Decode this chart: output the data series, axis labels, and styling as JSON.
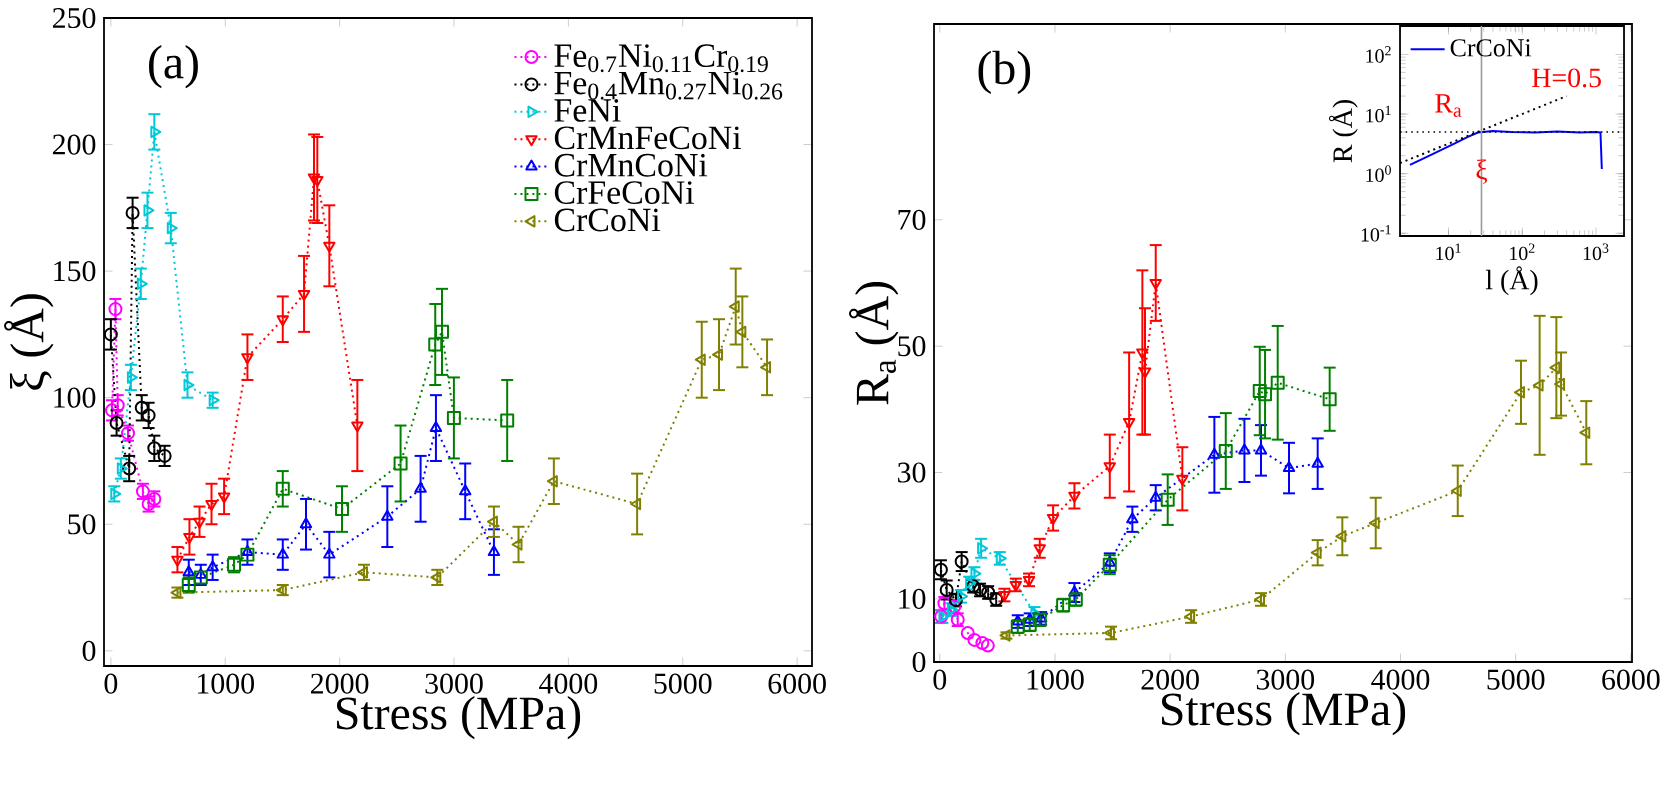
{
  "chart_data": [
    {
      "type": "line",
      "xlabel": "Stress (MPa)",
      "ylabel": "ξ (Å)",
      "annotations": [
        "(a)"
      ],
      "xlim": [
        -60,
        6130
      ],
      "ylim": [
        -6,
        250
      ],
      "xticks": [
        0,
        1000,
        2000,
        3000,
        4000,
        5000,
        6000
      ],
      "yticks": [
        0,
        50,
        100,
        150,
        200,
        250
      ],
      "legend": "top right",
      "line_style": "dotted",
      "grid": false,
      "series": [
        {
          "name": "Fe$_{0.7}$Ni$_{0.11}$Cr$_{0.19}$",
          "color": "#ff00ff",
          "marker": "circle",
          "x": [
            10,
            40,
            60,
            150,
            280,
            330,
            380
          ],
          "values": [
            95,
            135,
            97,
            86,
            63,
            58,
            60
          ],
          "errors": [
            4,
            4,
            4,
            3,
            3,
            3,
            3
          ]
        },
        {
          "name": "Fe$_{0.4}$Mn$_{0.27}$Ni$_{0.26}$",
          "color": "#000000",
          "marker": "circle",
          "x": [
            0,
            50,
            160,
            190,
            270,
            330,
            380,
            470
          ],
          "values": [
            125,
            90,
            72,
            173,
            96,
            93,
            80,
            77
          ],
          "errors": [
            6,
            5,
            5,
            6,
            5,
            5,
            5,
            4
          ]
        },
        {
          "name": "FeNi",
          "color": "#00c8d8",
          "marker": "triangle",
          "x": [
            30,
            87,
            175,
            262,
            320,
            380,
            524,
            670,
            890
          ],
          "values": [
            62,
            72,
            108,
            145,
            174,
            205,
            167,
            105,
            99
          ],
          "errors": [
            3,
            4,
            5,
            6,
            7,
            7,
            6,
            5,
            3
          ]
        },
        {
          "name": "CrMnFeCoNi",
          "color": "#ff0000",
          "marker": "triangle",
          "x": [
            582,
            687,
            775,
            880,
            990,
            1194,
            1503,
            1689,
            1776,
            1805,
            1910,
            2155
          ],
          "values": [
            36,
            45,
            51,
            58,
            61,
            116,
            131,
            141,
            187,
            186,
            160,
            89
          ],
          "errors": [
            5,
            7,
            6,
            8,
            7,
            9,
            9,
            15,
            17,
            17,
            16,
            18
          ]
        },
        {
          "name": "CrMnCoNi",
          "color": "#0000ff",
          "marker": "triangle",
          "x": [
            681,
            786,
            890,
            1194,
            1503,
            1706,
            1910,
            2417,
            2708,
            2842,
            3098,
            3349
          ],
          "values": [
            31,
            30,
            33,
            39,
            38,
            50,
            38,
            53,
            64,
            88,
            63,
            39
          ],
          "errors": [
            5,
            4,
            5,
            5,
            6,
            10,
            9,
            12,
            13,
            13,
            11,
            9
          ]
        },
        {
          "name": "CrFeCoNi",
          "color": "#008000",
          "marker": "square",
          "x": [
            681,
            786,
            1077,
            1194,
            1503,
            2021,
            2533,
            2836,
            2895,
            2999,
            3465
          ],
          "values": [
            26,
            29,
            34,
            38,
            64,
            56,
            74,
            121,
            126,
            92,
            91
          ],
          "errors": [
            3,
            null,
            3,
            null,
            7,
            9,
            15,
            16,
            17,
            16,
            16
          ]
        },
        {
          "name": "CrCoNi",
          "color": "#808000",
          "marker": "triangle",
          "x": [
            582,
            1503,
            2213,
            2854,
            3349,
            3564,
            3873,
            4601,
            5166,
            5317,
            5463,
            5521,
            5737
          ],
          "values": [
            23,
            24,
            31,
            29,
            51,
            42,
            67,
            58,
            115,
            117,
            136,
            126,
            112
          ],
          "errors": [
            2,
            2,
            3,
            3,
            6,
            7,
            9,
            12,
            15,
            14,
            15,
            14,
            11
          ]
        }
      ]
    },
    {
      "type": "line",
      "xlabel": "Stress (MPa)",
      "ylabel": "R$_{a}$ (Å)",
      "annotations": [
        "(b)"
      ],
      "xlim": [
        -50,
        6010
      ],
      "ylim": [
        0,
        101
      ],
      "xticks": [
        0,
        1000,
        2000,
        3000,
        4000,
        5000,
        6000
      ],
      "yticks": [
        0,
        10,
        30,
        50,
        70
      ],
      "line_style": "dotted",
      "grid": false,
      "series": [
        {
          "color": "#ff00ff",
          "marker": "circle",
          "x": [
            12,
            40,
            127,
            156,
            243,
            301,
            370,
            417
          ],
          "values": [
            7.2,
            9.3,
            8.8,
            6.7,
            4.6,
            3.5,
            3,
            2.6
          ],
          "errors": [
            1,
            1,
            1,
            1,
            null,
            null,
            null,
            null
          ]
        },
        {
          "color": "#000000",
          "marker": "circle",
          "x": [
            10,
            60,
            140,
            190,
            290,
            350,
            420,
            490
          ],
          "values": [
            14.6,
            11.4,
            9.8,
            15.9,
            12,
            11.4,
            11,
            9.9
          ],
          "errors": [
            1.5,
            1.5,
            1,
            1.5,
            1,
            1,
            1,
            1
          ]
        },
        {
          "color": "#00c8d8",
          "marker": "triangle",
          "x": [
            23,
            98,
            185,
            255,
            301,
            359,
            521,
            822
          ],
          "values": [
            7.2,
            8.3,
            10.4,
            12.5,
            14,
            18,
            16.4,
            7.7
          ],
          "errors": [
            1,
            1,
            1,
            1,
            1,
            1.5,
            1,
            1
          ]
        },
        {
          "color": "#ff0000",
          "marker": "triangle",
          "x": [
            561,
            660,
            775,
            868,
            984,
            1169,
            1476,
            1644,
            1759,
            1782,
            1875,
            2106
          ],
          "values": [
            10.6,
            12.2,
            13,
            18,
            22.8,
            26.3,
            31,
            38,
            49,
            46,
            60,
            29
          ],
          "errors": [
            1,
            1,
            1,
            1.5,
            2,
            2,
            5,
            11,
            13,
            10,
            6,
            5
          ]
        },
        {
          "color": "#0000ff",
          "marker": "triangle",
          "x": [
            677,
            781,
            880,
            1169,
            1476,
            1672,
            1875,
            2384,
            2645,
            2789,
            3032,
            3281
          ],
          "values": [
            6.4,
            6.7,
            6.9,
            11,
            15.7,
            22.6,
            26,
            32.8,
            33.5,
            33.5,
            30.7,
            31.4
          ],
          "errors": [
            1,
            1,
            1,
            1.5,
            1.5,
            2,
            2,
            6,
            5,
            4,
            4,
            4
          ]
        },
        {
          "color": "#008000",
          "marker": "square",
          "x": [
            677,
            781,
            868,
            1071,
            1181,
            1476,
            1979,
            2483,
            2778,
            2824,
            2934,
            3385
          ],
          "values": [
            5.6,
            5.9,
            6.7,
            9,
            9.9,
            15.4,
            25.7,
            33.4,
            42.9,
            42.4,
            44.2,
            41.6
          ],
          "errors": [
            1,
            1,
            1,
            1,
            1,
            1.5,
            4,
            6,
            7,
            7,
            9,
            5
          ]
        },
        {
          "color": "#808000",
          "marker": "triangle",
          "x": [
            579,
            1487,
            2182,
            2789,
            3281,
            3495,
            3785,
            4497,
            5046,
            5208,
            5353,
            5394,
            5613
          ],
          "values": [
            4.2,
            4.6,
            7.2,
            9.9,
            17.3,
            19.9,
            22,
            27.1,
            42.7,
            43.8,
            46.6,
            44,
            36.3
          ],
          "errors": [
            0.5,
            1,
            1,
            1,
            2,
            3,
            4,
            4,
            5,
            11,
            8,
            5,
            5
          ]
        }
      ]
    },
    {
      "type": "line",
      "xlabel": "l (Å)",
      "ylabel": "R (Å)",
      "log": "xy",
      "xlim": [
        2.2,
        2400
      ],
      "ylim": [
        0.09,
        300
      ],
      "xticks": [
        {
          "value": 10,
          "label": "10$^{1}$"
        },
        {
          "value": 100,
          "label": "10$^{2}$"
        },
        {
          "value": 1000,
          "label": "10$^{3}$"
        }
      ],
      "yticks": [
        {
          "value": 0.1,
          "label": "10$^{-1}$"
        },
        {
          "value": 1,
          "label": "10$^{0}$"
        },
        {
          "value": 10,
          "label": "10$^{1}$"
        },
        {
          "value": 100,
          "label": "10$^{2}$"
        }
      ],
      "legend": "top left",
      "grid": false,
      "annotations": [
        {
          "text": "R$_{a}$",
          "x": 10,
          "y": 8
        },
        {
          "text": "H=0.5",
          "x": 400,
          "y": 25
        },
        {
          "text": "ξ",
          "x": 28,
          "y": 0.6
        }
      ],
      "ref_lines": [
        {
          "axis": "y",
          "value": 5,
          "color": "#000000",
          "line_style": "dotted"
        },
        {
          "axis": "x",
          "value": 28,
          "color": "#999999",
          "line_style": "solid"
        }
      ],
      "series": [
        {
          "name": "CrCoNi",
          "color": "#0000ff",
          "line_style": "solid",
          "marker": "none",
          "x": [
            3,
            5,
            8,
            12,
            18,
            25,
            40,
            70,
            150,
            300,
            600,
            1000,
            1150,
            1200
          ],
          "values": [
            1.4,
            1.9,
            2.5,
            3.2,
            4.1,
            4.9,
            5.2,
            5.0,
            4.9,
            5.1,
            4.9,
            5.0,
            4.9,
            1.2
          ]
        },
        {
          "color": "#000000",
          "line_style": "dotted",
          "marker": "none",
          "x": [
            2.2,
            400
          ],
          "values": [
            1.5,
            20
          ]
        }
      ]
    }
  ]
}
